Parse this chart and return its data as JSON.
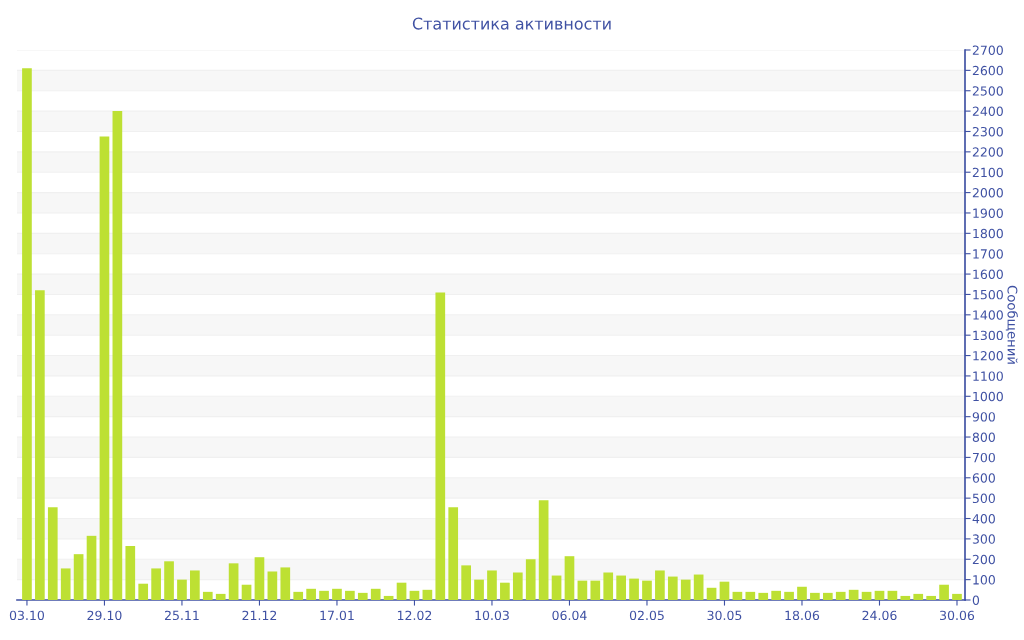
{
  "chart_data": {
    "type": "bar",
    "title": "Статистика активности",
    "ylabel": "Сообщений",
    "categories": [
      "03.10",
      null,
      null,
      null,
      null,
      null,
      "29.10",
      null,
      null,
      null,
      null,
      null,
      "25.11",
      null,
      null,
      null,
      null,
      null,
      "21.12",
      null,
      null,
      null,
      null,
      null,
      "17.01",
      null,
      null,
      null,
      null,
      null,
      "12.02",
      null,
      null,
      null,
      null,
      null,
      "10.03",
      null,
      null,
      null,
      null,
      null,
      "06.04",
      null,
      null,
      null,
      null,
      null,
      "02.05",
      null,
      null,
      null,
      null,
      null,
      "30.05",
      null,
      null,
      null,
      null,
      null,
      "18.06",
      null,
      null,
      null,
      null,
      null,
      "24.06",
      null,
      null,
      null,
      null,
      null,
      "30.06"
    ],
    "values": [
      2610,
      1520,
      455,
      155,
      225,
      315,
      2275,
      2400,
      265,
      80,
      155,
      190,
      100,
      145,
      40,
      30,
      180,
      75,
      210,
      140,
      160,
      40,
      55,
      45,
      55,
      45,
      35,
      55,
      20,
      85,
      45,
      50,
      1510,
      455,
      170,
      100,
      145,
      85,
      135,
      200,
      490,
      120,
      215,
      95,
      95,
      135,
      120,
      105,
      95,
      145,
      115,
      100,
      125,
      60,
      90,
      40,
      40,
      35,
      45,
      40,
      65,
      35,
      35,
      40,
      50,
      40,
      45,
      45,
      20,
      30,
      20,
      75,
      30
    ],
    "color": "#bde033",
    "ylim": [
      0,
      2700
    ],
    "yticks": [
      0,
      100,
      200,
      300,
      400,
      500,
      600,
      700,
      800,
      900,
      1000,
      1100,
      1200,
      1300,
      1400,
      1500,
      1600,
      1700,
      1800,
      1900,
      2000,
      2100,
      2200,
      2300,
      2400,
      2500,
      2600,
      2700
    ],
    "grid": "y",
    "legend": false
  }
}
